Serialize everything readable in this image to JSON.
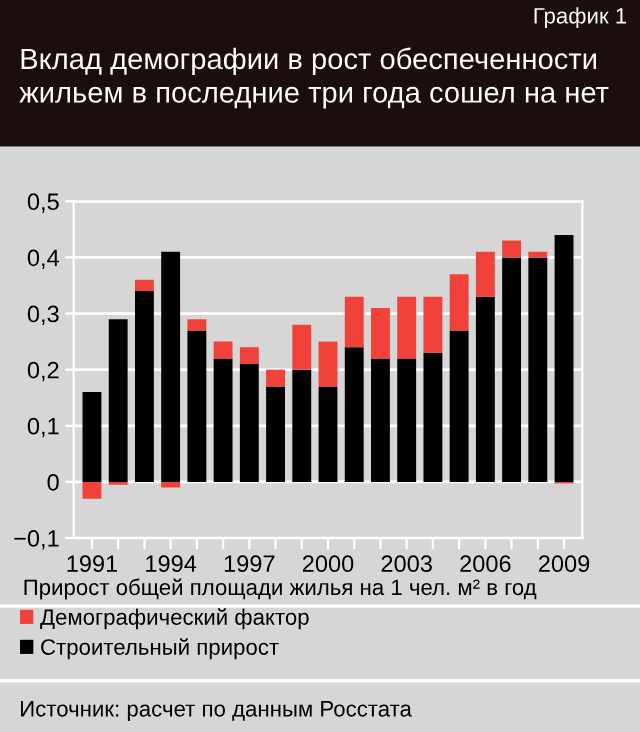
{
  "chart_data": {
    "type": "bar",
    "stacked": true,
    "title": "Вклад демографии в рост обеспеченности жильем в последние три года сошел на нет",
    "xlabel": "Прирост общей площади жилья на 1 чел. м² в год",
    "annotations": [
      "График 1",
      "Источник: расчет по данным Росстата"
    ],
    "categories": [
      "1991",
      null,
      null,
      "1994",
      null,
      null,
      "1997",
      null,
      null,
      "2000",
      null,
      null,
      "2003",
      null,
      null,
      "2006",
      null,
      null,
      "2009"
    ],
    "series": [
      {
        "name": "Строительный прирост",
        "color": "#000000",
        "values": [
          0.16,
          0.29,
          0.34,
          0.41,
          0.27,
          0.22,
          0.21,
          0.17,
          0.2,
          0.17,
          0.24,
          0.22,
          0.22,
          0.23,
          0.27,
          0.33,
          0.4,
          0.4,
          0.44
        ]
      },
      {
        "name": "Демографический фактор",
        "color": "#f0413a",
        "values": [
          -0.03,
          -0.005,
          0.02,
          -0.01,
          0.02,
          0.03,
          0.03,
          0.03,
          0.08,
          0.08,
          0.09,
          0.09,
          0.11,
          0.1,
          0.1,
          0.08,
          0.03,
          0.01,
          -0.003
        ]
      }
    ],
    "ylim": [
      -0.1,
      0.5
    ],
    "yticks": [
      {
        "value": -0.1,
        "label": "−0,1"
      },
      {
        "value": 0,
        "label": "0"
      },
      {
        "value": 0.1,
        "label": "0,1"
      },
      {
        "value": 0.2,
        "label": "0,2"
      },
      {
        "value": 0.3,
        "label": "0,3"
      },
      {
        "value": 0.4,
        "label": "0,4"
      },
      {
        "value": 0.5,
        "label": "0,5"
      }
    ],
    "grid": "y",
    "legend": "bottom"
  }
}
